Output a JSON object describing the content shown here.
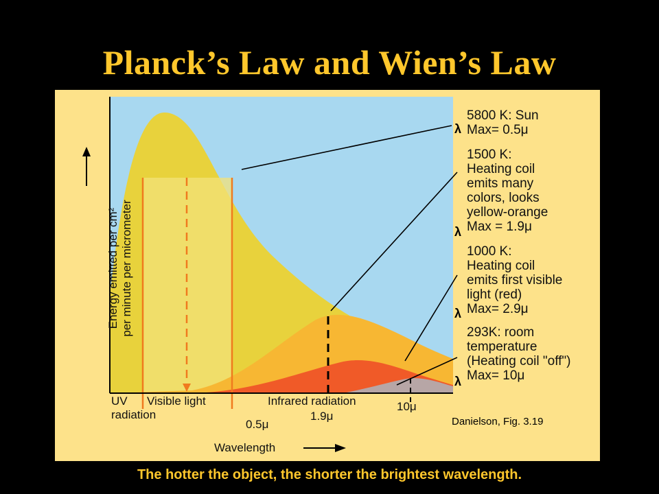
{
  "title": "Planck’s Law and Wien’s Law",
  "caption": "The hotter the object, the shorter the brightest wavelength.",
  "figure": {
    "y_axis_label_line1": "Energy emitted per cm²",
    "y_axis_label_line2": "per minute per micrometer",
    "x_axis_label": "Wavelength",
    "uv_label_line1": "UV",
    "uv_label_line2": "radiation",
    "visible_label": "Visible light",
    "infrared_label": "Infrared radiation",
    "tick_05": "0.5μ",
    "tick_19": "1.9μ",
    "tick_10": "10μ",
    "credit": "Danielson, Fig. 3.19",
    "annotations": [
      {
        "lines": [
          "5800 K: Sun",
          "Max= 0.5μ"
        ]
      },
      {
        "lines": [
          "1500 K:",
          "Heating coil",
          "emits many",
          "colors, looks",
          "yellow-orange",
          "Max = 1.9μ"
        ]
      },
      {
        "lines": [
          "1000 K:",
          "Heating coil",
          "emits first visible",
          "light (red)",
          "Max= 2.9μ"
        ]
      },
      {
        "lines": [
          "293K: room",
          "temperature",
          "(Heating coil \"off\")",
          "Max= 10μ"
        ]
      }
    ],
    "colors": {
      "sky": "#A8D8F0",
      "sun_curve": "#E6D43A",
      "yellow_orange": "#F7B733",
      "red": "#F05A28",
      "room": "#B7A6A6",
      "title": "#FFC72C"
    }
  }
}
